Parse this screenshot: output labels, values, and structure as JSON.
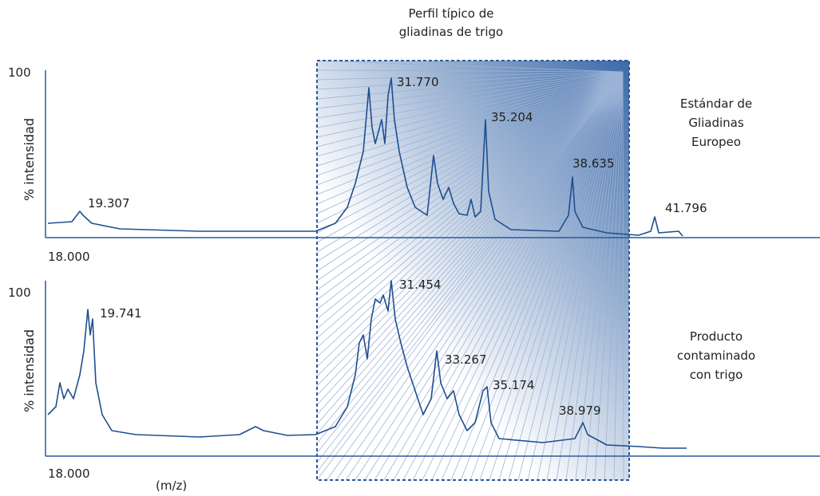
{
  "title": [
    "Perfil típico de",
    "gliadinas de trigo"
  ],
  "top": {
    "y_max": "100",
    "y_label": "% intensidad",
    "x_start": "18.000",
    "peaks": [
      "19.307",
      "31.770",
      "35.204",
      "38.635",
      "41.796"
    ],
    "legend": [
      "Estándar de",
      "Gliadinas",
      "Europeo"
    ]
  },
  "bottom": {
    "y_max": "100",
    "y_label": "% intensidad",
    "x_start": "18.000",
    "x_label": "(m/z)",
    "peaks": [
      "19.741",
      "31.454",
      "33.267",
      "35.174",
      "38.979"
    ],
    "legend": [
      "Producto",
      "contaminado",
      "con trigo"
    ]
  }
}
